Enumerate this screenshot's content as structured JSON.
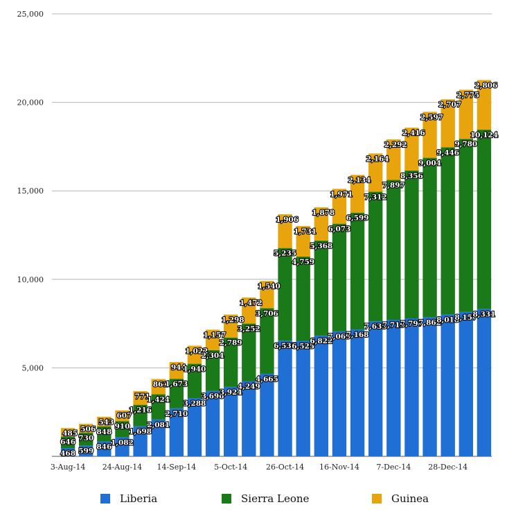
{
  "chart_data": {
    "type": "bar",
    "stacked": true,
    "title": "",
    "xlabel": "",
    "ylabel": "",
    "ylim": [
      0,
      25000
    ],
    "y_ticks": [
      "25,000",
      "20,000",
      "15,000",
      "10,000",
      "5,000"
    ],
    "x_tick_labels": [
      "3-Aug-14",
      "24-Aug-14",
      "14-Sep-14",
      "5-Oct-14",
      "26-Oct-14",
      "16-Nov-14",
      "7-Dec-14",
      "28-Dec-14"
    ],
    "grid": "horizontal",
    "legend_position": "bottom",
    "series": [
      {
        "name": "Liberia",
        "color": "#1f6fd4",
        "values": [
          468,
          599,
          846,
          1082,
          1698,
          2081,
          2710,
          3288,
          3696,
          3924,
          4249,
          4665,
          6535,
          6525,
          6822,
          7069,
          7168,
          7635,
          7719,
          7797,
          7862,
          8018,
          8157,
          8331
        ],
        "labels": [
          "468",
          "599",
          "846",
          "1,082",
          "1,698",
          "2,081",
          "2,710",
          "3,288",
          "3,696",
          "3,924",
          "4,249",
          "4,665",
          "6,535",
          "6,525",
          "6,822",
          "7,069",
          "7,168",
          "7,635",
          "7,719",
          "7,797",
          "7,862",
          "8,018",
          "8,157",
          "8,331"
        ]
      },
      {
        "name": "Sierra Leone",
        "color": "#1a7a1a",
        "values": [
          646,
          730,
          848,
          910,
          1216,
          1424,
          1673,
          1940,
          2304,
          2789,
          3252,
          3706,
          5235,
          4759,
          5368,
          6073,
          6599,
          7312,
          7897,
          8356,
          9004,
          9446,
          9780,
          10124
        ],
        "labels": [
          "646",
          "730",
          "848",
          "910",
          "1,216",
          "1,424",
          "1,673",
          "1,940",
          "2,304",
          "2,789",
          "3,252",
          "3,706",
          "5,235",
          "4,759",
          "5,368",
          "6,073",
          "6,599",
          "7,312",
          "7,897",
          "8,356",
          "9,004",
          "9,446",
          "9,780",
          "10,124"
        ]
      },
      {
        "name": "Guinea",
        "color": "#e8a40c",
        "values": [
          485,
          506,
          543,
          607,
          771,
          861,
          944,
          1022,
          1157,
          1298,
          1472,
          1540,
          1906,
          1731,
          1878,
          1971,
          2134,
          2164,
          2292,
          2416,
          2597,
          2707,
          2775,
          2806
        ],
        "labels": [
          "485",
          "506",
          "543",
          "607",
          "771",
          "861",
          "944",
          "1,022",
          "1,157",
          "1,298",
          "1,472",
          "1,540",
          "1,906",
          "1,731",
          "1,878",
          "1,971",
          "2,134",
          "2,164",
          "2,292",
          "2,416",
          "2,597",
          "2,707",
          "2,775",
          "2,806"
        ]
      }
    ]
  }
}
